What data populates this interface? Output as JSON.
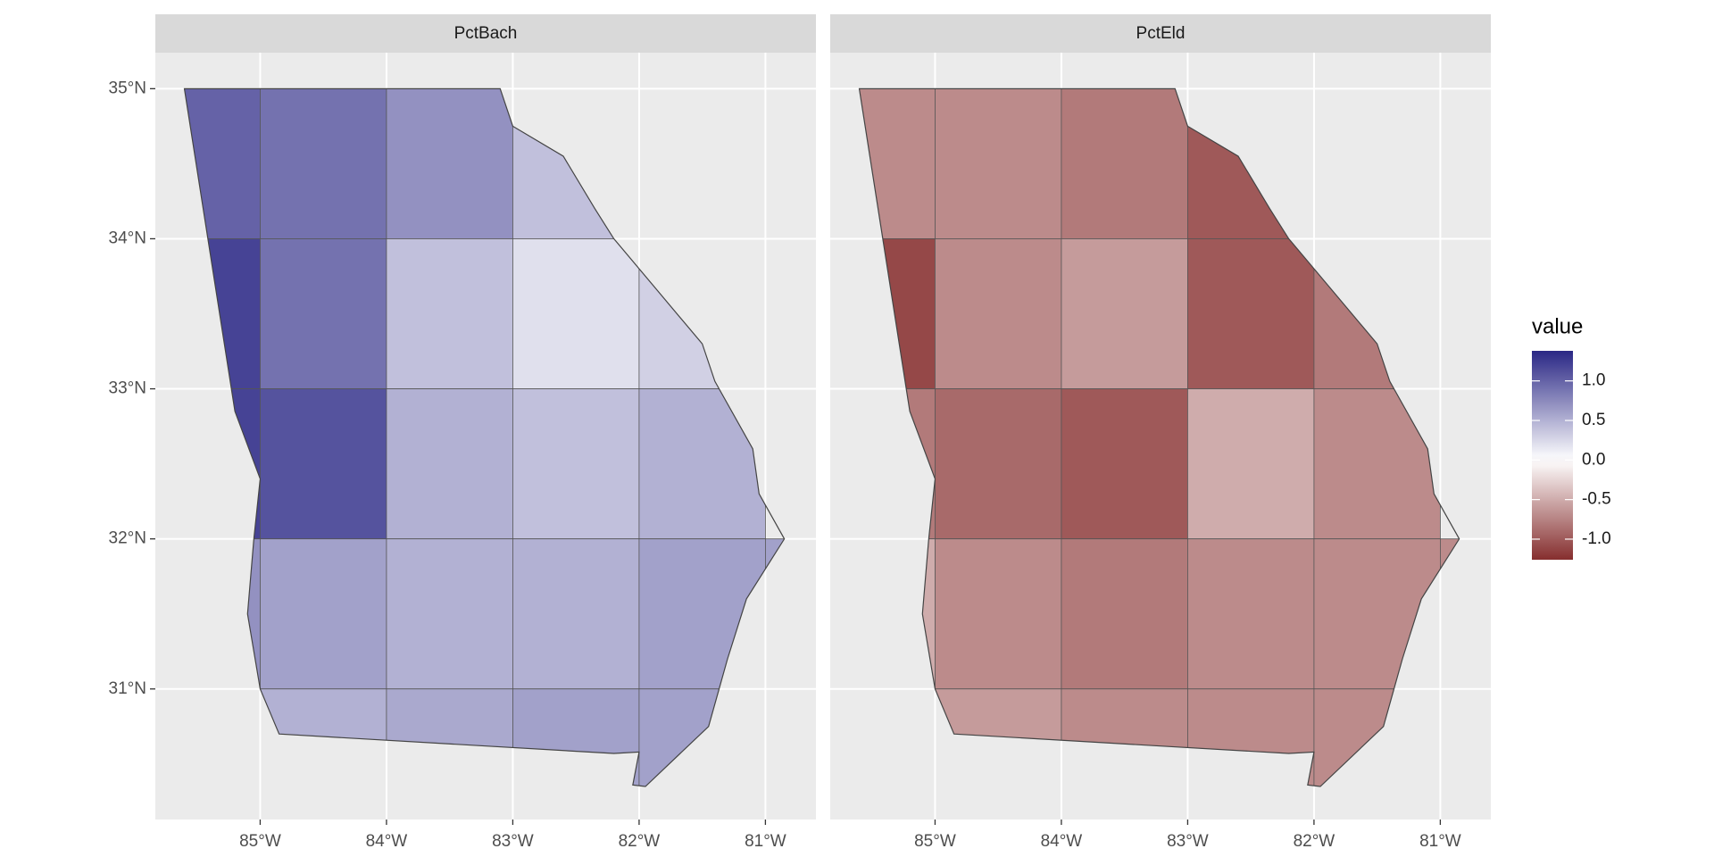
{
  "chart_data": [
    {
      "type": "map",
      "title": "PctBach",
      "x": [
        -85.5,
        -84.5,
        -83.5,
        -82.5,
        -85.5,
        -84.5,
        -83.5,
        -82.5,
        -81.5,
        -85.5,
        -84.5,
        -83.5,
        -82.5,
        -81.5,
        -85.5,
        -84.5,
        -83.5,
        -82.5,
        -81.5,
        -80.5,
        -85.5,
        -84.5,
        -83.5,
        -82.5,
        -81.5
      ],
      "y": [
        34.5,
        34.5,
        34.5,
        34.5,
        33.5,
        33.5,
        33.5,
        33.5,
        33.5,
        32.5,
        32.5,
        32.5,
        32.5,
        32.5,
        31.5,
        31.5,
        31.5,
        31.5,
        31.5,
        31.5,
        30.5,
        30.5,
        30.5,
        30.5,
        30.5
      ],
      "values": [
        1.0,
        0.9,
        0.7,
        0.4,
        1.2,
        0.9,
        0.4,
        0.2,
        0.3,
        1.2,
        1.1,
        0.5,
        0.4,
        0.5,
        0.7,
        0.6,
        0.5,
        0.5,
        0.6,
        0.6,
        0.5,
        0.5,
        0.55,
        0.6,
        0.6
      ],
      "xlim": [
        -85.83,
        -80.6
      ],
      "ylim": [
        30.13,
        35.24
      ],
      "xticks": [
        {
          "value": -85,
          "label": "85°W"
        },
        {
          "value": -84,
          "label": "84°W"
        },
        {
          "value": -83,
          "label": "83°W"
        },
        {
          "value": -82,
          "label": "82°W"
        },
        {
          "value": -81,
          "label": "81°W"
        }
      ],
      "yticks": [
        {
          "value": 31,
          "label": "31°N"
        },
        {
          "value": 32,
          "label": "32°N"
        },
        {
          "value": 33,
          "label": "33°N"
        },
        {
          "value": 34,
          "label": "34°N"
        },
        {
          "value": 35,
          "label": "35°N"
        }
      ],
      "grid": true
    },
    {
      "type": "map",
      "title": "PctEld",
      "x": [
        -85.5,
        -84.5,
        -83.5,
        -82.5,
        -85.5,
        -84.5,
        -83.5,
        -82.5,
        -81.5,
        -85.5,
        -84.5,
        -83.5,
        -82.5,
        -81.5,
        -85.5,
        -84.5,
        -83.5,
        -82.5,
        -81.5,
        -80.5,
        -85.5,
        -84.5,
        -83.5,
        -82.5,
        -81.5
      ],
      "y": [
        34.5,
        34.5,
        34.5,
        34.5,
        33.5,
        33.5,
        33.5,
        33.5,
        33.5,
        32.5,
        32.5,
        32.5,
        32.5,
        32.5,
        31.5,
        31.5,
        31.5,
        31.5,
        31.5,
        31.5,
        30.5,
        30.5,
        30.5,
        30.5,
        30.5
      ],
      "values": [
        -0.7,
        -0.7,
        -0.8,
        -1.0,
        -1.1,
        -0.7,
        -0.6,
        -1.0,
        -0.8,
        -0.8,
        -0.9,
        -1.0,
        -0.5,
        -0.7,
        -0.5,
        -0.7,
        -0.8,
        -0.7,
        -0.7,
        -0.7,
        -0.5,
        -0.6,
        -0.7,
        -0.7,
        -0.7
      ],
      "xlim": [
        -85.83,
        -80.6
      ],
      "ylim": [
        30.13,
        35.24
      ],
      "xticks": [
        {
          "value": -85,
          "label": "85°W"
        },
        {
          "value": -84,
          "label": "84°W"
        },
        {
          "value": -83,
          "label": "83°W"
        },
        {
          "value": -82,
          "label": "82°W"
        },
        {
          "value": -81,
          "label": "81°W"
        }
      ],
      "yticks": [
        {
          "value": 31,
          "label": "31°N"
        },
        {
          "value": 32,
          "label": "32°N"
        },
        {
          "value": 33,
          "label": "33°N"
        },
        {
          "value": 34,
          "label": "34°N"
        },
        {
          "value": 35,
          "label": "35°N"
        }
      ],
      "grid": true
    }
  ],
  "legend": {
    "title": "value",
    "colorlim": [
      -1.26,
      1.38
    ],
    "low": "#7a1a1a",
    "mid": "#ffffff",
    "high": "#2a2785",
    "ticks": [
      {
        "value": 1,
        "label": "1.0"
      },
      {
        "value": 0.5,
        "label": "0.5"
      },
      {
        "value": 0,
        "label": "0.0"
      },
      {
        "value": -0.5,
        "label": "-0.5"
      },
      {
        "value": -1,
        "label": "-1.0"
      }
    ]
  }
}
